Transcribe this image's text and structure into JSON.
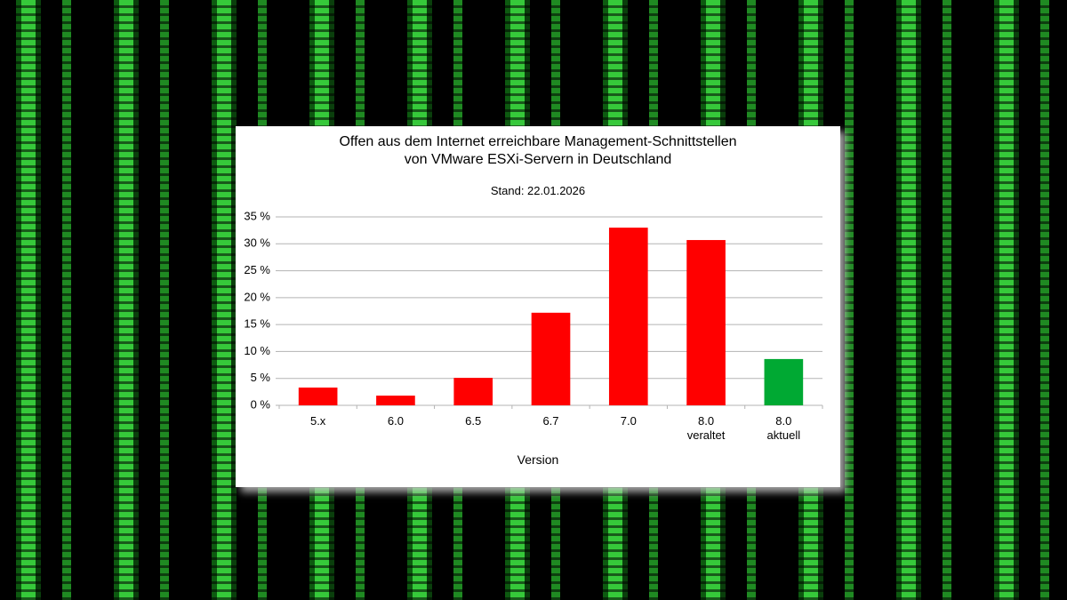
{
  "chart_data": {
    "type": "bar",
    "title": "Offen aus dem Internet erreichbare Management-Schnittstellen\nvon VMware ESXi-Servern in Deutschland",
    "subtitle": "Stand: 22.01.2026",
    "x_label": "Version",
    "categories": [
      "5.x",
      "6.0",
      "6.5",
      "6.7",
      "7.0",
      "8.0\nveraltet",
      "8.0\naktuell"
    ],
    "values": [
      3.3,
      1.8,
      5.1,
      17.2,
      33.0,
      30.7,
      8.6
    ],
    "colors": [
      "#ff0000",
      "#ff0000",
      "#ff0000",
      "#ff0000",
      "#ff0000",
      "#ff0000",
      "#00a933"
    ],
    "ylim": [
      0,
      35
    ],
    "yticks": [
      {
        "value": 0,
        "label": "0 %"
      },
      {
        "value": 5,
        "label": "5 %"
      },
      {
        "value": 10,
        "label": "10 %"
      },
      {
        "value": 15,
        "label": "15 %"
      },
      {
        "value": 20,
        "label": "20 %"
      },
      {
        "value": 25,
        "label": "25 %"
      },
      {
        "value": 30,
        "label": "30 %"
      },
      {
        "value": 35,
        "label": "35 %"
      }
    ],
    "grid": true
  }
}
